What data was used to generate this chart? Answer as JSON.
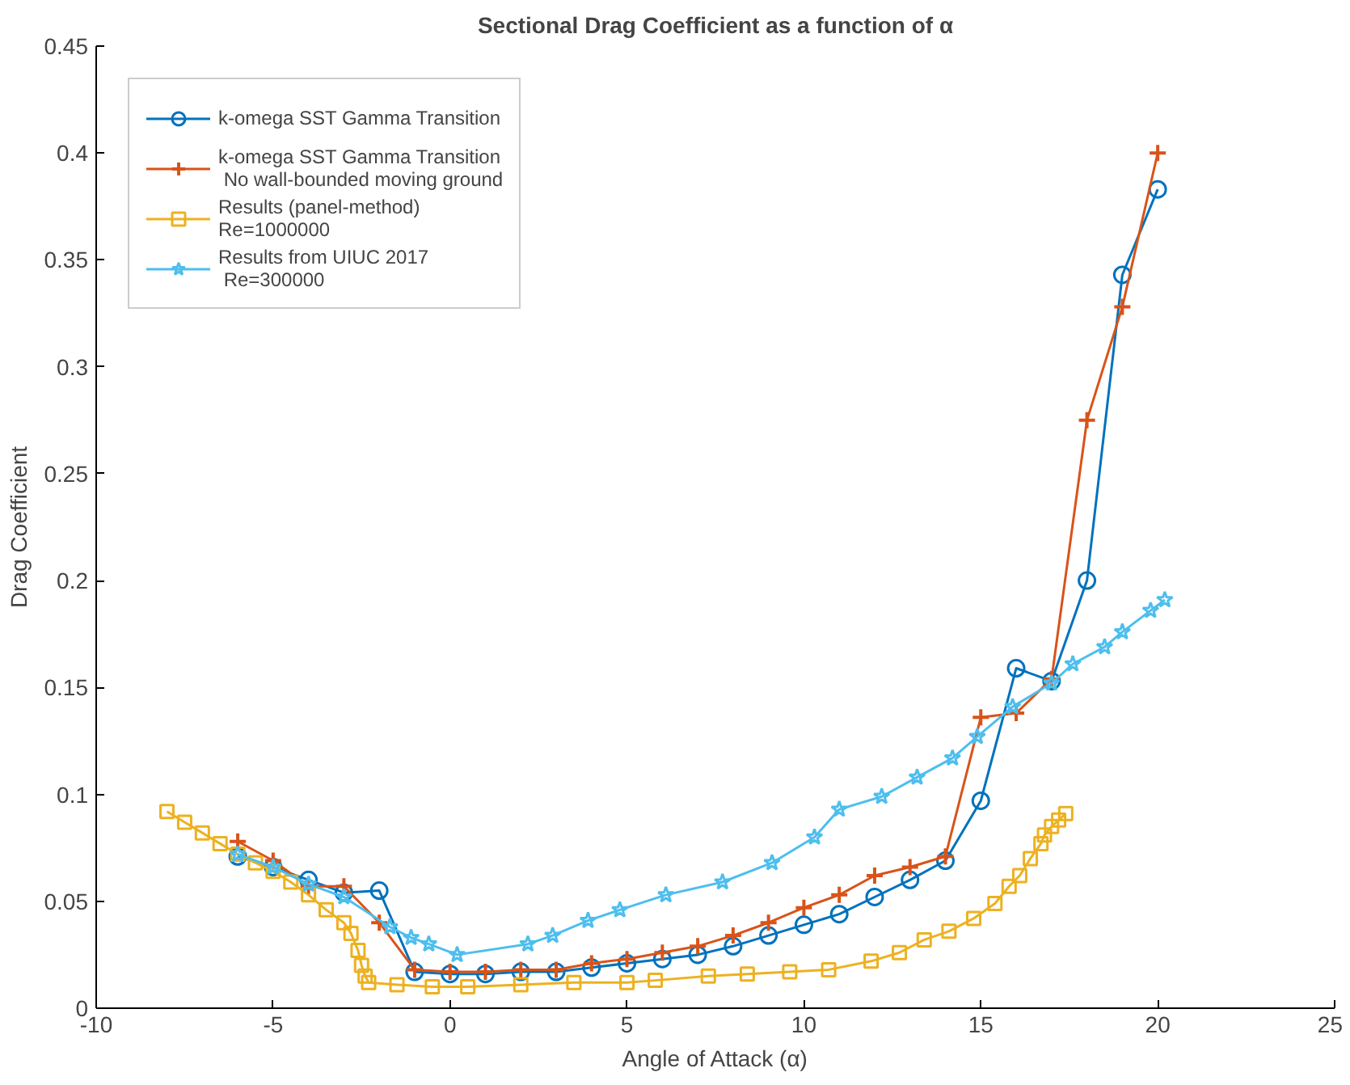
{
  "chart_data": {
    "type": "line",
    "title": "Sectional Drag Coefficient as a function of α",
    "xlabel": "Angle of Attack (α)",
    "ylabel": "Drag Coefficient",
    "xlim": [
      -10,
      25
    ],
    "xticks": [
      -10,
      -5,
      0,
      5,
      10,
      15,
      20,
      25
    ],
    "ylim": [
      0,
      0.45
    ],
    "yticks": [
      0,
      0.05,
      0.1,
      0.15,
      0.2,
      0.25,
      0.3,
      0.35,
      0.4,
      0.45
    ],
    "grid": false,
    "legend": "top left",
    "line_style": "solid",
    "series": [
      {
        "name": "k-omega SST Gamma Transition",
        "color": "#0072bd",
        "marker": "circle",
        "x": [
          -6,
          -5,
          -4,
          -3,
          -2,
          -1,
          0,
          1,
          2,
          3,
          4,
          5,
          6,
          7,
          8,
          9,
          10,
          11,
          12,
          13,
          14,
          15,
          16,
          17,
          18,
          19,
          20
        ],
        "values": [
          0.071,
          0.066,
          0.06,
          0.054,
          0.055,
          0.017,
          0.016,
          0.016,
          0.017,
          0.017,
          0.019,
          0.021,
          0.023,
          0.025,
          0.029,
          0.034,
          0.039,
          0.044,
          0.052,
          0.06,
          0.069,
          0.097,
          0.159,
          0.153,
          0.2,
          0.343,
          0.383
        ]
      },
      {
        "name": "k-omega SST Gamma Transition\n No wall-bounded moving ground",
        "color": "#d95319",
        "marker": "cross",
        "x": [
          -6,
          -5,
          -4,
          -3,
          -2,
          -1,
          0,
          1,
          2,
          3,
          4,
          5,
          6,
          7,
          8,
          9,
          10,
          11,
          12,
          13,
          14,
          15,
          16,
          17,
          18,
          19,
          20
        ],
        "values": [
          0.078,
          0.069,
          0.057,
          0.057,
          0.04,
          0.018,
          0.017,
          0.017,
          0.018,
          0.018,
          0.021,
          0.023,
          0.026,
          0.029,
          0.034,
          0.04,
          0.047,
          0.053,
          0.062,
          0.066,
          0.071,
          0.136,
          0.138,
          0.154,
          0.275,
          0.328,
          0.4
        ]
      },
      {
        "name": "Results (panel-method)\nRe=1000000",
        "color": "#edb120",
        "marker": "square",
        "x": [
          -8,
          -7.5,
          -7,
          -6.5,
          -6,
          -5.5,
          -5,
          -4.5,
          -4,
          -3.5,
          -3,
          -2.8,
          -2.6,
          -2.5,
          -2.4,
          -2.3,
          -1.5,
          -0.5,
          0.5,
          2,
          3.5,
          5,
          5.8,
          7.3,
          8.4,
          9.6,
          10.7,
          11.9,
          12.7,
          13.4,
          14.1,
          14.8,
          15.4,
          15.8,
          16.1,
          16.4,
          16.7,
          16.8,
          17,
          17.2,
          17.4
        ],
        "values": [
          0.092,
          0.087,
          0.082,
          0.077,
          0.072,
          0.068,
          0.064,
          0.059,
          0.053,
          0.046,
          0.04,
          0.035,
          0.027,
          0.02,
          0.015,
          0.012,
          0.011,
          0.01,
          0.01,
          0.011,
          0.012,
          0.012,
          0.013,
          0.015,
          0.016,
          0.017,
          0.018,
          0.022,
          0.026,
          0.032,
          0.036,
          0.042,
          0.049,
          0.057,
          0.062,
          0.07,
          0.077,
          0.081,
          0.085,
          0.088,
          0.091
        ]
      },
      {
        "name": "Results from UIUC 2017\n Re=300000",
        "color": "#4dbeee",
        "marker": "star",
        "x": [
          -6,
          -5,
          -4,
          -3,
          -1.7,
          -1.1,
          -0.6,
          0.2,
          2.2,
          2.9,
          3.9,
          4.8,
          6.1,
          7.7,
          9.1,
          10.3,
          11,
          12.2,
          13.2,
          14.2,
          14.9,
          15.9,
          17,
          17.6,
          18.5,
          19,
          19.8,
          20.2
        ],
        "values": [
          0.072,
          0.066,
          0.058,
          0.052,
          0.038,
          0.033,
          0.03,
          0.025,
          0.03,
          0.034,
          0.041,
          0.046,
          0.053,
          0.059,
          0.068,
          0.08,
          0.093,
          0.099,
          0.108,
          0.117,
          0.127,
          0.141,
          0.152,
          0.161,
          0.169,
          0.176,
          0.186,
          0.191
        ]
      }
    ]
  }
}
